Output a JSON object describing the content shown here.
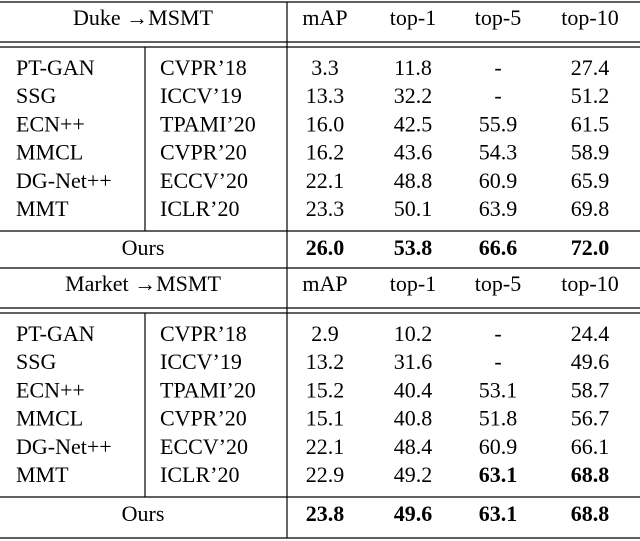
{
  "sections": [
    {
      "title": "Duke →MSMT",
      "columns": [
        "mAP",
        "top-1",
        "top-5",
        "top-10"
      ],
      "rows": [
        {
          "method": "PT-GAN",
          "venue": "CVPR’18",
          "values": [
            "3.3",
            "11.8",
            "-",
            "27.4"
          ]
        },
        {
          "method": "SSG",
          "venue": "ICCV’19",
          "values": [
            "13.3",
            "32.2",
            "-",
            "51.2"
          ]
        },
        {
          "method": "ECN++",
          "venue": "TPAMI’20",
          "values": [
            "16.0",
            "42.5",
            "55.9",
            "61.5"
          ]
        },
        {
          "method": "MMCL",
          "venue": "CVPR’20",
          "values": [
            "16.2",
            "43.6",
            "54.3",
            "58.9"
          ]
        },
        {
          "method": "DG-Net++",
          "venue": "ECCV’20",
          "values": [
            "22.1",
            "48.8",
            "60.9",
            "65.9"
          ]
        },
        {
          "method": "MMT",
          "venue": "ICLR’20",
          "values": [
            "23.3",
            "50.1",
            "63.9",
            "69.8"
          ]
        }
      ],
      "ours": {
        "method": "Ours",
        "values": [
          "26.0",
          "53.8",
          "66.6",
          "72.0"
        ]
      }
    },
    {
      "title": "Market →MSMT",
      "columns": [
        "mAP",
        "top-1",
        "top-5",
        "top-10"
      ],
      "rows": [
        {
          "method": "PT-GAN",
          "venue": "CVPR’18",
          "values": [
            "2.9",
            "10.2",
            "-",
            "24.4"
          ]
        },
        {
          "method": "SSG",
          "venue": "ICCV’19",
          "values": [
            "13.2",
            "31.6",
            "-",
            "49.6"
          ]
        },
        {
          "method": "ECN++",
          "venue": "TPAMI’20",
          "values": [
            "15.2",
            "40.4",
            "53.1",
            "58.7"
          ]
        },
        {
          "method": "MMCL",
          "venue": "CVPR’20",
          "values": [
            "15.1",
            "40.8",
            "51.8",
            "56.7"
          ]
        },
        {
          "method": "DG-Net++",
          "venue": "ECCV’20",
          "values": [
            "22.1",
            "48.4",
            "60.9",
            "66.1"
          ]
        },
        {
          "method": "MMT",
          "venue": "ICLR’20",
          "values": [
            "22.9",
            "49.2",
            "63.1",
            "68.8"
          ]
        }
      ],
      "ours": {
        "method": "Ours",
        "values": [
          "23.8",
          "49.6",
          "63.1",
          "68.8"
        ]
      }
    }
  ]
}
